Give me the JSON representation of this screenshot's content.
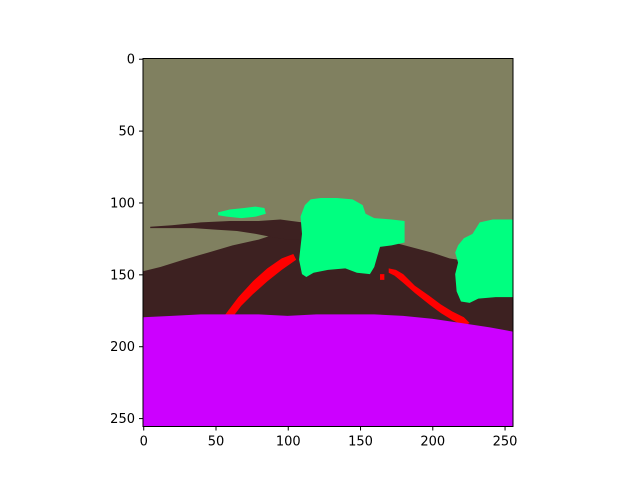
{
  "chart_data": {
    "type": "heatmap",
    "title": "",
    "xlabel": "",
    "ylabel": "",
    "image_size": [
      256,
      256
    ],
    "xlim": [
      0,
      256
    ],
    "ylim": [
      256,
      0
    ],
    "y_inverted": true,
    "grid": false,
    "legend": "none",
    "x_ticks": [
      0,
      50,
      100,
      150,
      200,
      250
    ],
    "x_tick_labels": [
      "0",
      "50",
      "100",
      "150",
      "200",
      "250"
    ],
    "y_ticks": [
      0,
      50,
      100,
      150,
      200,
      250
    ],
    "y_tick_labels": [
      "0",
      "50",
      "100",
      "150",
      "200",
      "250"
    ],
    "classes": [
      {
        "color": "#808060"
      },
      {
        "color": "#3d2121"
      },
      {
        "color": "#00ff80"
      },
      {
        "color": "#ff0000"
      },
      {
        "color": "#cc00ff"
      }
    ],
    "regions": [
      {
        "class": 0,
        "points": [
          [
            0,
            0
          ],
          [
            256,
            0
          ],
          [
            256,
            256
          ],
          [
            0,
            256
          ]
        ]
      },
      {
        "class": 1,
        "points": [
          [
            0,
            148
          ],
          [
            12,
            145
          ],
          [
            28,
            140
          ],
          [
            45,
            135
          ],
          [
            62,
            130
          ],
          [
            80,
            126
          ],
          [
            92,
            122
          ],
          [
            108,
            120
          ],
          [
            122,
            121
          ],
          [
            138,
            122
          ],
          [
            155,
            124
          ],
          [
            170,
            127
          ],
          [
            185,
            131
          ],
          [
            200,
            135
          ],
          [
            212,
            139
          ],
          [
            225,
            141
          ],
          [
            240,
            144
          ],
          [
            256,
            146
          ],
          [
            256,
            256
          ],
          [
            0,
            256
          ]
        ]
      },
      {
        "class": 1,
        "points": [
          [
            5,
            117
          ],
          [
            20,
            116
          ],
          [
            40,
            114
          ],
          [
            60,
            113
          ],
          [
            80,
            113
          ],
          [
            95,
            112
          ],
          [
            110,
            114
          ],
          [
            125,
            118
          ],
          [
            130,
            124
          ],
          [
            120,
            126
          ],
          [
            100,
            126
          ],
          [
            88,
            124
          ],
          [
            78,
            122
          ],
          [
            65,
            120
          ],
          [
            50,
            119
          ],
          [
            35,
            118
          ],
          [
            20,
            118
          ],
          [
            5,
            118
          ]
        ]
      },
      {
        "class": 2,
        "points": [
          [
            52,
            107
          ],
          [
            60,
            105
          ],
          [
            70,
            104
          ],
          [
            78,
            103
          ],
          [
            84,
            104
          ],
          [
            85,
            108
          ],
          [
            78,
            110
          ],
          [
            68,
            111
          ],
          [
            58,
            110
          ],
          [
            52,
            109
          ]
        ]
      },
      {
        "class": 2,
        "points": [
          [
            109,
            110
          ],
          [
            112,
            102
          ],
          [
            116,
            98
          ],
          [
            123,
            97
          ],
          [
            134,
            97
          ],
          [
            145,
            98
          ],
          [
            152,
            102
          ],
          [
            154,
            108
          ],
          [
            160,
            111
          ],
          [
            172,
            112
          ],
          [
            181,
            113
          ],
          [
            181,
            128
          ],
          [
            172,
            130
          ],
          [
            164,
            131
          ],
          [
            160,
            145
          ],
          [
            157,
            150
          ],
          [
            148,
            149
          ],
          [
            140,
            146
          ],
          [
            128,
            147
          ],
          [
            118,
            149
          ],
          [
            113,
            152
          ],
          [
            110,
            150
          ],
          [
            108,
            140
          ],
          [
            110,
            122
          ]
        ]
      },
      {
        "class": 2,
        "points": [
          [
            218,
            130
          ],
          [
            222,
            125
          ],
          [
            228,
            122
          ],
          [
            233,
            114
          ],
          [
            242,
            112
          ],
          [
            256,
            112
          ],
          [
            256,
            166
          ],
          [
            244,
            166
          ],
          [
            232,
            167
          ],
          [
            226,
            170
          ],
          [
            220,
            169
          ],
          [
            217,
            162
          ],
          [
            216,
            150
          ],
          [
            218,
            142
          ],
          [
            216,
            135
          ]
        ]
      },
      {
        "class": 3,
        "points": [
          [
            57,
            178
          ],
          [
            66,
            166
          ],
          [
            76,
            155
          ],
          [
            86,
            146
          ],
          [
            96,
            139
          ],
          [
            104,
            136
          ],
          [
            106,
            140
          ],
          [
            96,
            147
          ],
          [
            86,
            155
          ],
          [
            76,
            164
          ],
          [
            68,
            172
          ],
          [
            62,
            180
          ],
          [
            56,
            181
          ]
        ]
      },
      {
        "class": 3,
        "points": [
          [
            170,
            146
          ],
          [
            175,
            147
          ],
          [
            180,
            150
          ],
          [
            188,
            158
          ],
          [
            198,
            165
          ],
          [
            206,
            171
          ],
          [
            214,
            176
          ],
          [
            222,
            180
          ],
          [
            226,
            184
          ],
          [
            222,
            186
          ],
          [
            214,
            182
          ],
          [
            206,
            177
          ],
          [
            198,
            171
          ],
          [
            188,
            163
          ],
          [
            180,
            156
          ],
          [
            174,
            151
          ],
          [
            170,
            149
          ]
        ]
      },
      {
        "class": 3,
        "points": [
          [
            164,
            150
          ],
          [
            167,
            150
          ],
          [
            167,
            154
          ],
          [
            164,
            154
          ]
        ]
      },
      {
        "class": 4,
        "points": [
          [
            0,
            180
          ],
          [
            20,
            179
          ],
          [
            40,
            178
          ],
          [
            60,
            178
          ],
          [
            80,
            178
          ],
          [
            100,
            179
          ],
          [
            120,
            178
          ],
          [
            140,
            178
          ],
          [
            160,
            178
          ],
          [
            180,
            179
          ],
          [
            200,
            181
          ],
          [
            220,
            184
          ],
          [
            240,
            187
          ],
          [
            256,
            190
          ],
          [
            256,
            256
          ],
          [
            0,
            256
          ]
        ]
      }
    ]
  }
}
